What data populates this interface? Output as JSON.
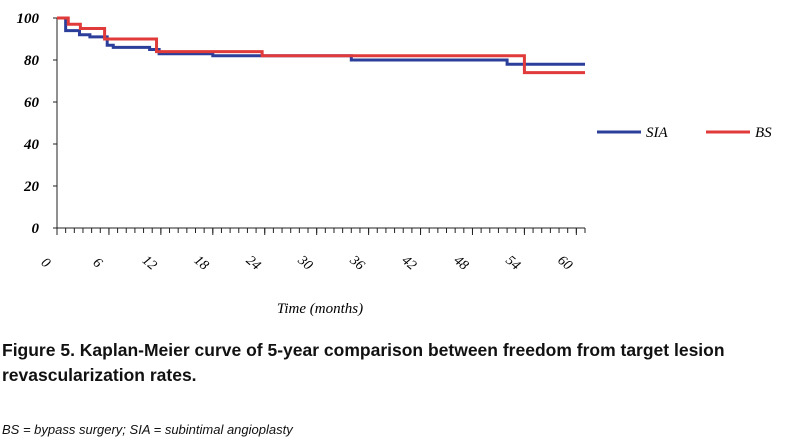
{
  "chart_data": {
    "type": "line",
    "xlabel": "Time (months)",
    "xlim": [
      0,
      61
    ],
    "ylim": [
      0,
      100
    ],
    "xticks": [
      0,
      6,
      12,
      18,
      24,
      30,
      36,
      42,
      48,
      54,
      60
    ],
    "xminorticks": [
      0,
      1,
      2,
      3,
      4,
      5,
      6,
      7,
      8,
      9,
      10,
      11,
      12,
      13,
      14,
      15,
      16,
      17,
      18,
      19,
      20,
      21,
      22,
      23,
      24,
      25,
      26,
      27,
      28,
      29,
      30,
      31,
      32,
      33,
      34,
      35,
      36,
      37,
      38,
      39,
      40,
      41,
      42,
      43,
      44,
      45,
      46,
      47,
      48,
      49,
      50,
      51,
      52,
      53,
      54,
      55,
      56,
      57,
      58,
      59,
      60,
      61
    ],
    "yticks": [
      0,
      20,
      40,
      60,
      80,
      100
    ],
    "series": [
      {
        "name": "SIA",
        "color": "#2b3f9a",
        "x": [
          0,
          1,
          1,
          2.6,
          2.6,
          3.8,
          3.8,
          5.8,
          5.8,
          6.5,
          6.5,
          10.7,
          10.7,
          11.8,
          11.8,
          18,
          18,
          34,
          34,
          52,
          52,
          61
        ],
        "values": [
          100,
          100,
          94,
          94,
          92,
          92,
          91,
          91,
          87,
          87,
          86,
          86,
          85,
          85,
          83,
          83,
          82,
          82,
          80,
          80,
          78,
          78
        ]
      },
      {
        "name": "BS",
        "color": "#e03a3a",
        "x": [
          0,
          1.3,
          1.3,
          2.7,
          2.7,
          5.5,
          5.5,
          11.5,
          11.5,
          23.7,
          23.7,
          54,
          54,
          61
        ],
        "values": [
          100,
          100,
          97,
          97,
          95,
          95,
          90,
          90,
          84,
          84,
          82,
          82,
          74,
          74
        ]
      }
    ]
  },
  "caption": "Figure 5. Kaplan-Meier curve of 5-year comparison between freedom from target lesion revascularization rates.",
  "footnote": "BS = bypass surgery; SIA = subintimal angioplasty"
}
